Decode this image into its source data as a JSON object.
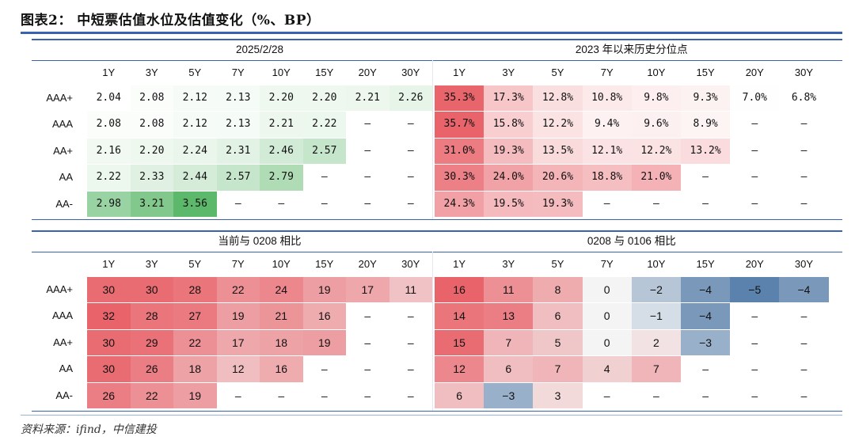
{
  "title": "图表2：  中短票估值水位及估值变化（%、BP）",
  "source": "资料来源：ifind，中信建投",
  "ratings": [
    "AAA+",
    "AAA",
    "AA+",
    "AA",
    "AA-"
  ],
  "tenors": [
    "1Y",
    "3Y",
    "5Y",
    "7Y",
    "10Y",
    "15Y",
    "20Y",
    "30Y"
  ],
  "dash": "–",
  "colors": {
    "green": "#5cb86a",
    "red": "#e8636a",
    "blue": "#5b82ac",
    "rule": "#3a63ad"
  },
  "chart_data": [
    {
      "type": "heatmap",
      "title": "2025/2/28",
      "rows": [
        "AAA+",
        "AAA",
        "AA+",
        "AA",
        "AA-"
      ],
      "columns": [
        "1Y",
        "3Y",
        "5Y",
        "7Y",
        "10Y",
        "15Y",
        "20Y",
        "30Y"
      ],
      "values": [
        [
          2.04,
          2.08,
          2.12,
          2.13,
          2.2,
          2.2,
          2.21,
          2.26
        ],
        [
          2.08,
          2.08,
          2.12,
          2.13,
          2.21,
          2.22,
          null,
          null
        ],
        [
          2.16,
          2.2,
          2.24,
          2.31,
          2.46,
          2.57,
          null,
          null
        ],
        [
          2.22,
          2.33,
          2.44,
          2.57,
          2.79,
          null,
          null,
          null
        ],
        [
          2.98,
          3.21,
          3.56,
          null,
          null,
          null,
          null,
          null
        ]
      ],
      "labels": [
        [
          "2.04",
          "2.08",
          "2.12",
          "2.13",
          "2.20",
          "2.20",
          "2.21",
          "2.26"
        ],
        [
          "2.08",
          "2.08",
          "2.12",
          "2.13",
          "2.21",
          "2.22",
          null,
          null
        ],
        [
          "2.16",
          "2.20",
          "2.24",
          "2.31",
          "2.46",
          "2.57",
          null,
          null
        ],
        [
          "2.22",
          "2.33",
          "2.44",
          "2.57",
          "2.79",
          null,
          null,
          null
        ],
        [
          "2.98",
          "3.21",
          "3.56",
          null,
          null,
          null,
          null,
          null
        ]
      ],
      "colorscale": "white-green"
    },
    {
      "type": "heatmap",
      "title": "2023 年以来历史分位点",
      "rows": [
        "AAA+",
        "AAA",
        "AA+",
        "AA",
        "AA-"
      ],
      "columns": [
        "1Y",
        "3Y",
        "5Y",
        "7Y",
        "10Y",
        "15Y",
        "20Y",
        "30Y"
      ],
      "values": [
        [
          35.3,
          17.3,
          12.8,
          10.8,
          9.8,
          9.3,
          7.0,
          6.8
        ],
        [
          35.7,
          15.8,
          12.2,
          9.4,
          9.6,
          8.9,
          null,
          null
        ],
        [
          31.0,
          19.3,
          13.5,
          12.1,
          12.2,
          13.2,
          null,
          null
        ],
        [
          30.3,
          24.0,
          20.6,
          18.8,
          21.0,
          null,
          null,
          null
        ],
        [
          24.3,
          19.5,
          19.3,
          null,
          null,
          null,
          null,
          null
        ]
      ],
      "labels": [
        [
          "35.3%",
          "17.3%",
          "12.8%",
          "10.8%",
          "9.8%",
          "9.3%",
          "7.0%",
          "6.8%"
        ],
        [
          "35.7%",
          "15.8%",
          "12.2%",
          "9.4%",
          "9.6%",
          "8.9%",
          null,
          null
        ],
        [
          "31.0%",
          "19.3%",
          "13.5%",
          "12.1%",
          "12.2%",
          "13.2%",
          null,
          null
        ],
        [
          "30.3%",
          "24.0%",
          "20.6%",
          "18.8%",
          "21.0%",
          null,
          null,
          null
        ],
        [
          "24.3%",
          "19.5%",
          "19.3%",
          null,
          null,
          null,
          null,
          null
        ]
      ],
      "colorscale": "white-red"
    },
    {
      "type": "heatmap",
      "title": "当前与 0208 相比",
      "rows": [
        "AAA+",
        "AAA",
        "AA+",
        "AA",
        "AA-"
      ],
      "columns": [
        "1Y",
        "3Y",
        "5Y",
        "7Y",
        "10Y",
        "15Y",
        "20Y",
        "30Y"
      ],
      "values": [
        [
          30,
          30,
          28,
          22,
          24,
          19,
          17,
          11
        ],
        [
          32,
          28,
          27,
          19,
          21,
          16,
          null,
          null
        ],
        [
          30,
          29,
          22,
          17,
          18,
          19,
          null,
          null
        ],
        [
          30,
          26,
          18,
          12,
          16,
          null,
          null,
          null
        ],
        [
          26,
          22,
          19,
          null,
          null,
          null,
          null,
          null
        ]
      ],
      "labels": [
        [
          "30",
          "30",
          "28",
          "22",
          "24",
          "19",
          "17",
          "11"
        ],
        [
          "32",
          "28",
          "27",
          "19",
          "21",
          "16",
          null,
          null
        ],
        [
          "30",
          "29",
          "22",
          "17",
          "18",
          "19",
          null,
          null
        ],
        [
          "30",
          "26",
          "18",
          "12",
          "16",
          null,
          null,
          null
        ],
        [
          "26",
          "22",
          "19",
          null,
          null,
          null,
          null,
          null
        ]
      ],
      "colorscale": "blue-white-red"
    },
    {
      "type": "heatmap",
      "title": "0208 与 0106 相比",
      "rows": [
        "AAA+",
        "AAA",
        "AA+",
        "AA",
        "AA-"
      ],
      "columns": [
        "1Y",
        "3Y",
        "5Y",
        "7Y",
        "10Y",
        "15Y",
        "20Y",
        "30Y"
      ],
      "values": [
        [
          16,
          11,
          8,
          0,
          -2,
          -4,
          -5,
          -4
        ],
        [
          14,
          13,
          6,
          0,
          -1,
          -4,
          null,
          null
        ],
        [
          15,
          7,
          5,
          0,
          2,
          -3,
          null,
          null
        ],
        [
          12,
          6,
          7,
          4,
          7,
          null,
          null,
          null
        ],
        [
          6,
          -3,
          3,
          null,
          null,
          null,
          null,
          null
        ]
      ],
      "labels": [
        [
          "16",
          "11",
          "8",
          "0",
          "−2",
          "−4",
          "−5",
          "−4"
        ],
        [
          "14",
          "13",
          "6",
          "0",
          "−1",
          "−4",
          null,
          null
        ],
        [
          "15",
          "7",
          "5",
          "0",
          "2",
          "−3",
          null,
          null
        ],
        [
          "12",
          "6",
          "7",
          "4",
          "7",
          null,
          null,
          null
        ],
        [
          "6",
          "−3",
          "3",
          null,
          null,
          null,
          null,
          null
        ]
      ],
      "colorscale": "blue-white-red"
    }
  ]
}
